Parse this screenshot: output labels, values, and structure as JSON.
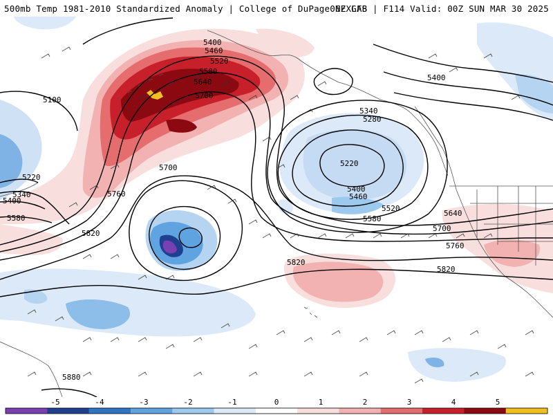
{
  "header": {
    "left": "500mb Temp 1981-2010 Standardized Anomaly | College of DuPage NEXLAB",
    "right": "06Z GFS | F114 Valid: 00Z SUN MAR 30 2025"
  },
  "map": {
    "product": "500mb temperature standardized anomaly with height contours and wind barbs",
    "region": "North Pacific, Alaska and western North America",
    "contour_labels": [
      "5400",
      "5460",
      "5520",
      "5580",
      "5640",
      "5700",
      "5100",
      "5220",
      "5340",
      "5400",
      "5580",
      "5760",
      "5820",
      "5700",
      "5340",
      "5280",
      "5220",
      "5400",
      "5460",
      "5520",
      "5580",
      "5640",
      "5700",
      "5760",
      "5400",
      "5820",
      "5820",
      "5880"
    ]
  },
  "colorbar": {
    "tick_labels": [
      "-5",
      "-4",
      "-3",
      "-2",
      "-1",
      "0",
      "1",
      "2",
      "3",
      "4",
      "5"
    ],
    "colors": [
      "#7a3fb0",
      "#1f3f8f",
      "#2f75c4",
      "#5fa3e0",
      "#9ec9ef",
      "#dbe9f8",
      "#ffffff",
      "#f9dede",
      "#f2b2b2",
      "#e56d6d",
      "#c8202b",
      "#8b0a12",
      "#f0c020"
    ]
  }
}
